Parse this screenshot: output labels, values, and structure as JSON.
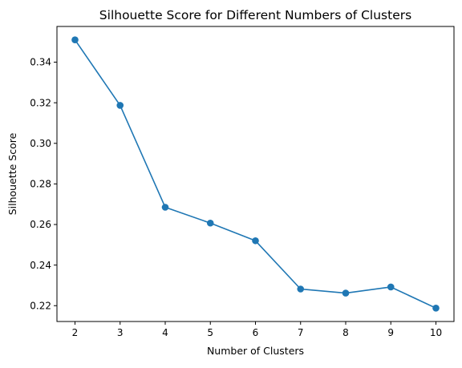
{
  "chart_data": {
    "type": "line",
    "title": "Silhouette Score for Different Numbers of Clusters",
    "xlabel": "Number of Clusters",
    "ylabel": "Silhouette Score",
    "x": [
      2,
      3,
      4,
      5,
      6,
      7,
      8,
      9,
      10
    ],
    "series": [
      {
        "values": [
          0.351,
          0.3187,
          0.2685,
          0.2607,
          0.252,
          0.2282,
          0.2262,
          0.2292,
          0.2188
        ],
        "color": "#1f77b4",
        "marker": "circle"
      }
    ],
    "xlim": [
      1.6,
      10.4
    ],
    "ylim": [
      0.2122,
      0.3576
    ],
    "xticks": [
      "2",
      "3",
      "4",
      "5",
      "6",
      "7",
      "8",
      "9",
      "10"
    ],
    "yticks": [
      "0.22",
      "0.24",
      "0.26",
      "0.28",
      "0.30",
      "0.32",
      "0.34"
    ],
    "grid": false,
    "legend": false
  }
}
